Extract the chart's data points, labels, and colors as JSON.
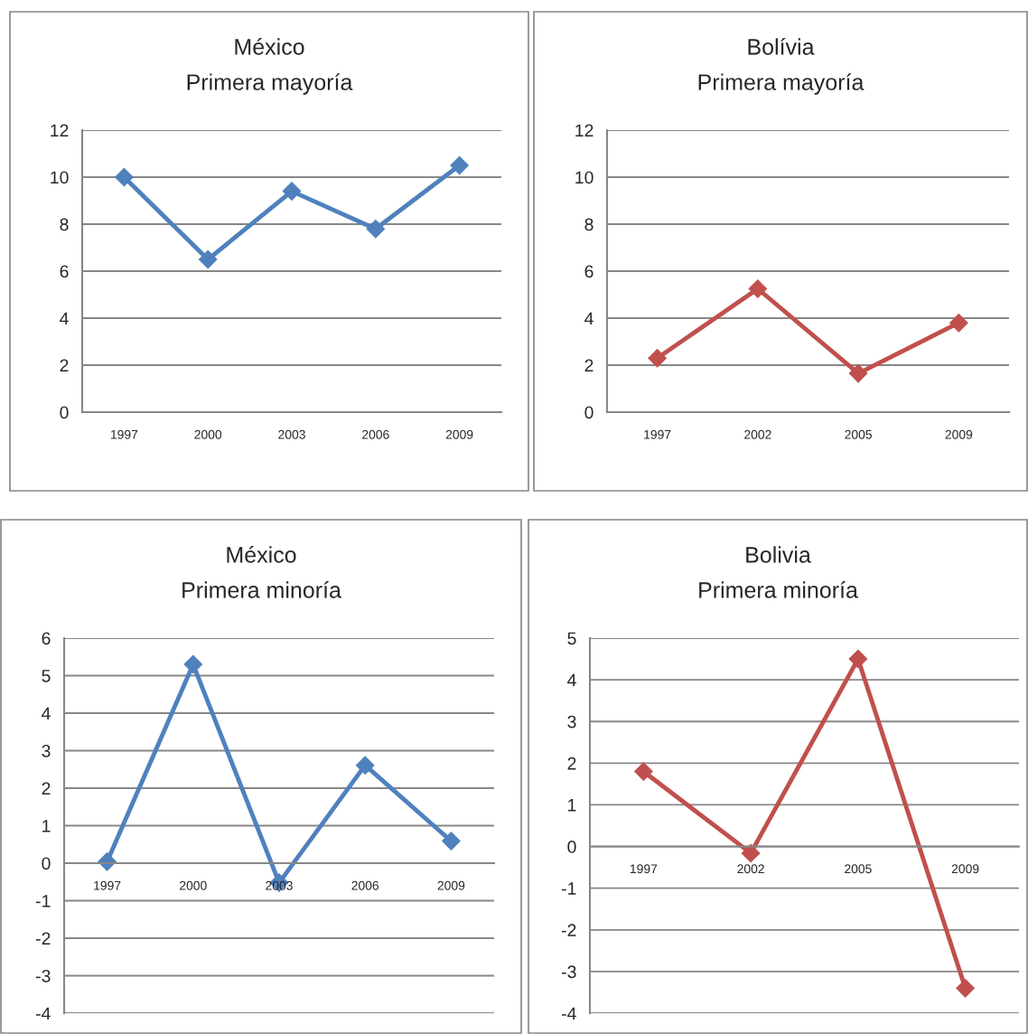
{
  "chart_data": [
    {
      "type": "line",
      "title": "México",
      "subtitle": "Primera mayoría",
      "categories": [
        "1997",
        "2000",
        "2003",
        "2006",
        "2009"
      ],
      "series": [
        {
          "color": "#4f81bd",
          "values": [
            10.0,
            6.5,
            9.4,
            7.8,
            10.5
          ]
        }
      ],
      "ylim": [
        0,
        12
      ],
      "yticks": [
        0,
        2,
        4,
        6,
        8,
        10,
        12
      ],
      "grid": "y",
      "marker": "diamond",
      "line_style": "solid"
    },
    {
      "type": "line",
      "title": "Bolívia",
      "subtitle": "Primera mayoría",
      "categories": [
        "1997",
        "2002",
        "2005",
        "2009"
      ],
      "series": [
        {
          "color": "#c0504d",
          "values": [
            2.3,
            5.25,
            1.65,
            3.8
          ]
        }
      ],
      "ylim": [
        0,
        12
      ],
      "yticks": [
        0,
        2,
        4,
        6,
        8,
        10,
        12
      ],
      "grid": "y",
      "marker": "diamond",
      "line_style": "solid"
    },
    {
      "type": "line",
      "title": "México",
      "subtitle": "Primera minoría",
      "categories": [
        "1997",
        "2000",
        "2003",
        "2006",
        "2009"
      ],
      "series": [
        {
          "color": "#4f81bd",
          "values": [
            0.04,
            5.3,
            -0.52,
            2.61,
            0.59
          ]
        }
      ],
      "ylim": [
        -4,
        6
      ],
      "yticks": [
        -4,
        -3,
        -2,
        -1,
        0,
        1,
        2,
        3,
        4,
        5,
        6
      ],
      "grid": "y",
      "marker": "diamond",
      "line_style": "solid"
    },
    {
      "type": "line",
      "title": "Bolivia",
      "subtitle": "Primera minoría",
      "categories": [
        "1997",
        "2002",
        "2005",
        "2009"
      ],
      "series": [
        {
          "color": "#c0504d",
          "values": [
            1.8,
            -0.16,
            4.5,
            -3.4
          ]
        }
      ],
      "ylim": [
        -4,
        5
      ],
      "yticks": [
        -4,
        -3,
        -2,
        -1,
        0,
        1,
        2,
        3,
        4,
        5
      ],
      "grid": "y",
      "marker": "diamond",
      "line_style": "solid"
    }
  ]
}
